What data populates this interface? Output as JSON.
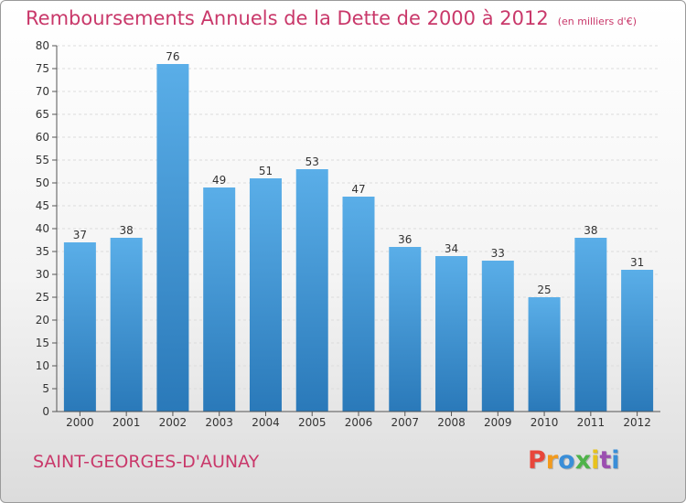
{
  "header": {
    "title": "Remboursements Annuels de la Dette de 2000 à 2012",
    "unit": "(en milliers d'€)"
  },
  "footer": {
    "city": "SAINT-GEORGES-D'AUNAY",
    "brand": "Proxiti",
    "brand_colors": [
      "#e8463a",
      "#f29a1d",
      "#3a8ed8",
      "#4fb34a",
      "#e8c21d",
      "#9b4fb0",
      "#3a8ed8"
    ]
  },
  "colors": {
    "bar_light": "#5aaee8",
    "bar_dark": "#2a79b9",
    "title": "#c9386a"
  },
  "chart_data": {
    "type": "bar",
    "title": "Remboursements Annuels de la Dette de 2000 à 2012",
    "xlabel": "",
    "ylabel": "",
    "categories": [
      "2000",
      "2001",
      "2002",
      "2003",
      "2004",
      "2005",
      "2006",
      "2007",
      "2008",
      "2009",
      "2010",
      "2011",
      "2012"
    ],
    "values": [
      37,
      38,
      76,
      49,
      51,
      53,
      47,
      36,
      34,
      33,
      25,
      38,
      31
    ],
    "ylim": [
      0,
      80
    ],
    "yticks": [
      0,
      5,
      10,
      15,
      20,
      25,
      30,
      35,
      40,
      45,
      50,
      55,
      60,
      65,
      70,
      75,
      80
    ],
    "grid": true,
    "legend": "none"
  }
}
